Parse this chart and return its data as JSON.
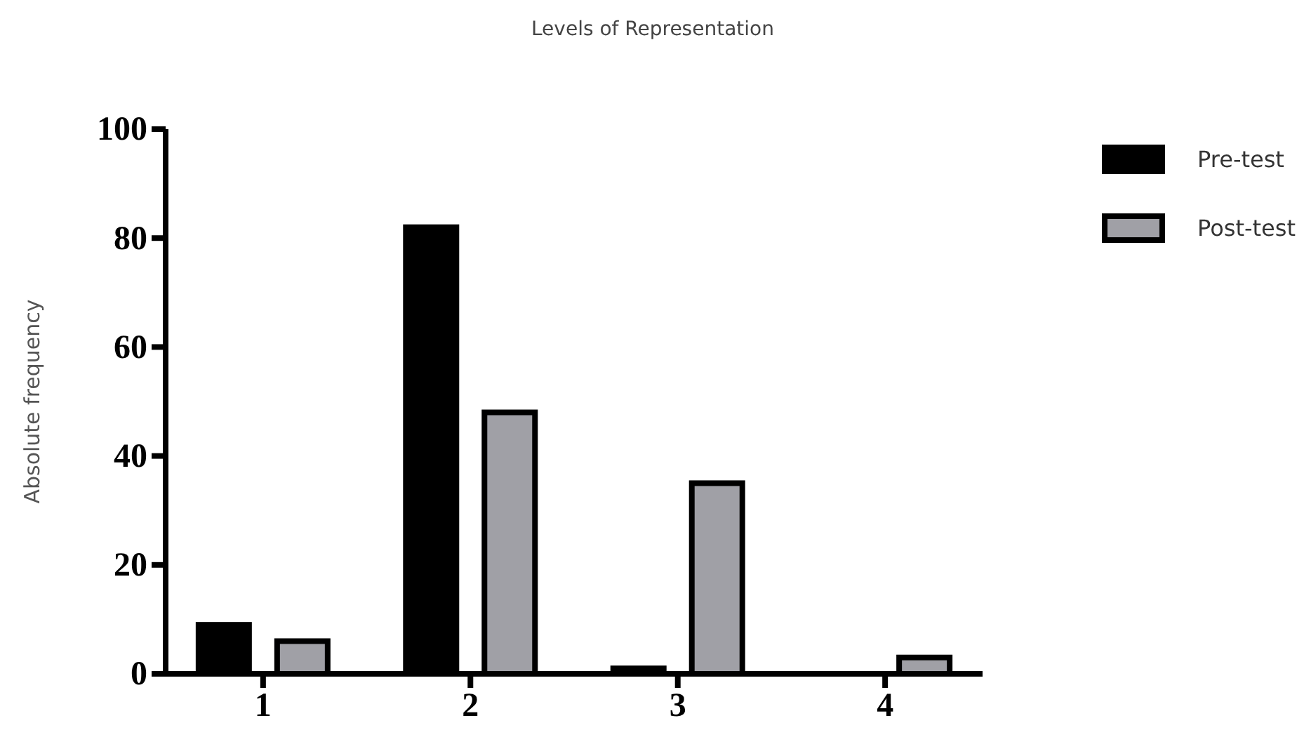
{
  "chart_data": {
    "type": "bar",
    "title": "Levels of Representation",
    "ylabel": "Absolute frequency",
    "categories": [
      "1",
      "2",
      "3",
      "4"
    ],
    "series": [
      {
        "name": "Pre-test",
        "color": "#000000",
        "values": [
          9,
          82,
          1,
          0
        ]
      },
      {
        "name": "Post-test",
        "color": "#a0a0a6",
        "values": [
          6,
          48,
          35,
          3
        ]
      }
    ],
    "ylim": [
      0,
      100
    ],
    "yticks": [
      0,
      20,
      40,
      60,
      80,
      100
    ],
    "grid": false,
    "legend": "top right"
  }
}
